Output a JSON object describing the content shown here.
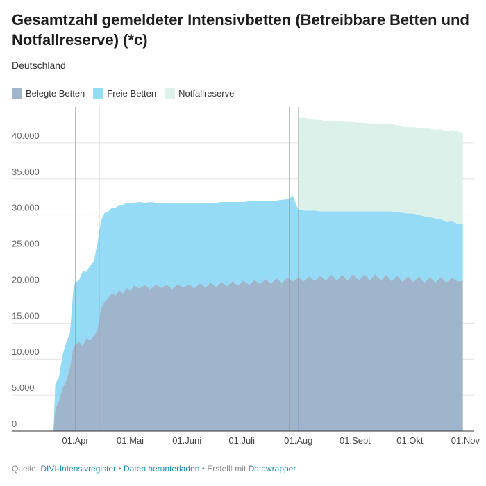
{
  "chart_data": {
    "type": "area",
    "title": "Gesamtzahl gemeldeter Intensivbetten (Betreibbare Betten und Notfallreserve) (*c)",
    "subtitle": "Deutschland",
    "xlabel": "",
    "ylabel": "",
    "x_range": [
      "2020-03-20",
      "2020-11-01"
    ],
    "ylim": [
      0,
      45000
    ],
    "y_ticks": [
      {
        "value": 0,
        "label": "0"
      },
      {
        "value": 5000,
        "label": "5.000"
      },
      {
        "value": 10000,
        "label": "10.000"
      },
      {
        "value": 15000,
        "label": "15.000"
      },
      {
        "value": 20000,
        "label": "20.000"
      },
      {
        "value": 25000,
        "label": "25.000"
      },
      {
        "value": 30000,
        "label": "30.000"
      },
      {
        "value": 35000,
        "label": "35.000"
      },
      {
        "value": 40000,
        "label": "40.000"
      }
    ],
    "x_ticks": [
      {
        "date": "2020-04-01",
        "label": "01.Apr"
      },
      {
        "date": "2020-05-01",
        "label": "01.Mai"
      },
      {
        "date": "2020-06-01",
        "label": "01.Juni"
      },
      {
        "date": "2020-07-01",
        "label": "01.Juli"
      },
      {
        "date": "2020-08-01",
        "label": "01.Aug"
      },
      {
        "date": "2020-09-01",
        "label": "01.Sept"
      },
      {
        "date": "2020-10-01",
        "label": "01.Okt"
      },
      {
        "date": "2020-11-01",
        "label": "01.Nov"
      }
    ],
    "reference_lines": [
      "2020-04-01",
      "2020-04-14",
      "2020-07-27",
      "2020-08-01"
    ],
    "grid": true,
    "legend_position": "top-left",
    "stacked": true,
    "series": [
      {
        "name": "Belegte Betten",
        "color": "#9fb5cc",
        "points": [
          [
            "2020-03-20",
            0
          ],
          [
            "2020-03-21",
            3000
          ],
          [
            "2020-03-23",
            4200
          ],
          [
            "2020-03-25",
            6000
          ],
          [
            "2020-03-27",
            7000
          ],
          [
            "2020-03-29",
            8800
          ],
          [
            "2020-03-31",
            11800
          ],
          [
            "2020-04-01",
            12000
          ],
          [
            "2020-04-03",
            12400
          ],
          [
            "2020-04-05",
            11800
          ],
          [
            "2020-04-07",
            12900
          ],
          [
            "2020-04-09",
            12600
          ],
          [
            "2020-04-11",
            13200
          ],
          [
            "2020-04-13",
            14000
          ],
          [
            "2020-04-15",
            17000
          ],
          [
            "2020-04-17",
            18000
          ],
          [
            "2020-04-19",
            18500
          ],
          [
            "2020-04-21",
            19200
          ],
          [
            "2020-04-23",
            18800
          ],
          [
            "2020-04-25",
            19600
          ],
          [
            "2020-04-27",
            19100
          ],
          [
            "2020-04-29",
            19900
          ],
          [
            "2020-05-01",
            19500
          ],
          [
            "2020-05-03",
            20200
          ],
          [
            "2020-05-06",
            19800
          ],
          [
            "2020-05-09",
            20300
          ],
          [
            "2020-05-12",
            19700
          ],
          [
            "2020-05-15",
            20300
          ],
          [
            "2020-05-18",
            19900
          ],
          [
            "2020-05-21",
            20300
          ],
          [
            "2020-05-24",
            19700
          ],
          [
            "2020-05-27",
            20400
          ],
          [
            "2020-05-30",
            19900
          ],
          [
            "2020-06-02",
            20400
          ],
          [
            "2020-06-05",
            19800
          ],
          [
            "2020-06-08",
            20500
          ],
          [
            "2020-06-11",
            19900
          ],
          [
            "2020-06-14",
            20600
          ],
          [
            "2020-06-17",
            20000
          ],
          [
            "2020-06-20",
            20700
          ],
          [
            "2020-06-23",
            20100
          ],
          [
            "2020-06-26",
            20800
          ],
          [
            "2020-06-29",
            20200
          ],
          [
            "2020-07-02",
            20900
          ],
          [
            "2020-07-05",
            20300
          ],
          [
            "2020-07-08",
            21000
          ],
          [
            "2020-07-11",
            20400
          ],
          [
            "2020-07-14",
            21100
          ],
          [
            "2020-07-17",
            20500
          ],
          [
            "2020-07-20",
            21200
          ],
          [
            "2020-07-23",
            20600
          ],
          [
            "2020-07-26",
            21300
          ],
          [
            "2020-07-29",
            20800
          ],
          [
            "2020-08-01",
            21300
          ],
          [
            "2020-08-04",
            20800
          ],
          [
            "2020-08-07",
            21500
          ],
          [
            "2020-08-10",
            20800
          ],
          [
            "2020-08-13",
            21600
          ],
          [
            "2020-08-16",
            20900
          ],
          [
            "2020-08-19",
            21700
          ],
          [
            "2020-08-22",
            20900
          ],
          [
            "2020-08-25",
            21700
          ],
          [
            "2020-08-28",
            20900
          ],
          [
            "2020-08-31",
            21800
          ],
          [
            "2020-09-03",
            20900
          ],
          [
            "2020-09-06",
            21800
          ],
          [
            "2020-09-09",
            20900
          ],
          [
            "2020-09-12",
            21800
          ],
          [
            "2020-09-15",
            20900
          ],
          [
            "2020-09-18",
            21700
          ],
          [
            "2020-09-21",
            20800
          ],
          [
            "2020-09-24",
            21600
          ],
          [
            "2020-09-27",
            20700
          ],
          [
            "2020-09-30",
            21500
          ],
          [
            "2020-10-03",
            20700
          ],
          [
            "2020-10-06",
            21500
          ],
          [
            "2020-10-09",
            20600
          ],
          [
            "2020-10-12",
            21400
          ],
          [
            "2020-10-15",
            20600
          ],
          [
            "2020-10-18",
            21400
          ],
          [
            "2020-10-21",
            20600
          ],
          [
            "2020-10-24",
            21300
          ],
          [
            "2020-10-27",
            20800
          ],
          [
            "2020-10-30",
            20800
          ]
        ]
      },
      {
        "name": "Freie Betten",
        "color": "#95dbf5",
        "points": [
          [
            "2020-03-20",
            0
          ],
          [
            "2020-03-21",
            3500
          ],
          [
            "2020-03-23",
            3300
          ],
          [
            "2020-03-25",
            4600
          ],
          [
            "2020-03-27",
            5300
          ],
          [
            "2020-03-29",
            4800
          ],
          [
            "2020-03-31",
            8300
          ],
          [
            "2020-04-01",
            8600
          ],
          [
            "2020-04-03",
            8600
          ],
          [
            "2020-04-05",
            10400
          ],
          [
            "2020-04-07",
            9200
          ],
          [
            "2020-04-09",
            10400
          ],
          [
            "2020-04-11",
            10300
          ],
          [
            "2020-04-13",
            12000
          ],
          [
            "2020-04-15",
            12200
          ],
          [
            "2020-04-17",
            12300
          ],
          [
            "2020-04-19",
            12000
          ],
          [
            "2020-04-21",
            11800
          ],
          [
            "2020-04-23",
            12200
          ],
          [
            "2020-04-25",
            11800
          ],
          [
            "2020-04-27",
            12300
          ],
          [
            "2020-04-29",
            11800
          ],
          [
            "2020-05-01",
            12200
          ],
          [
            "2020-05-03",
            11500
          ],
          [
            "2020-05-06",
            12000
          ],
          [
            "2020-05-09",
            11400
          ],
          [
            "2020-05-12",
            12100
          ],
          [
            "2020-05-15",
            11400
          ],
          [
            "2020-05-18",
            11800
          ],
          [
            "2020-05-21",
            11300
          ],
          [
            "2020-05-24",
            11900
          ],
          [
            "2020-05-27",
            11200
          ],
          [
            "2020-05-30",
            11700
          ],
          [
            "2020-06-02",
            11200
          ],
          [
            "2020-06-05",
            11800
          ],
          [
            "2020-06-08",
            11100
          ],
          [
            "2020-06-11",
            11700
          ],
          [
            "2020-06-14",
            11100
          ],
          [
            "2020-06-17",
            11700
          ],
          [
            "2020-06-20",
            11100
          ],
          [
            "2020-06-23",
            11700
          ],
          [
            "2020-06-26",
            11000
          ],
          [
            "2020-06-29",
            11600
          ],
          [
            "2020-07-02",
            10900
          ],
          [
            "2020-07-05",
            11600
          ],
          [
            "2020-07-08",
            10900
          ],
          [
            "2020-07-11",
            11500
          ],
          [
            "2020-07-14",
            10800
          ],
          [
            "2020-07-17",
            11400
          ],
          [
            "2020-07-20",
            10800
          ],
          [
            "2020-07-23",
            11500
          ],
          [
            "2020-07-26",
            10900
          ],
          [
            "2020-07-29",
            11800
          ],
          [
            "2020-08-01",
            9400
          ],
          [
            "2020-08-04",
            9800
          ],
          [
            "2020-08-07",
            9100
          ],
          [
            "2020-08-10",
            9800
          ],
          [
            "2020-08-13",
            8900
          ],
          [
            "2020-08-16",
            9600
          ],
          [
            "2020-08-19",
            8800
          ],
          [
            "2020-08-22",
            9600
          ],
          [
            "2020-08-25",
            8800
          ],
          [
            "2020-08-28",
            9600
          ],
          [
            "2020-08-31",
            8700
          ],
          [
            "2020-09-03",
            9600
          ],
          [
            "2020-09-06",
            8700
          ],
          [
            "2020-09-09",
            9600
          ],
          [
            "2020-09-12",
            8700
          ],
          [
            "2020-09-15",
            9600
          ],
          [
            "2020-09-18",
            8800
          ],
          [
            "2020-09-21",
            9700
          ],
          [
            "2020-09-24",
            8800
          ],
          [
            "2020-09-27",
            9600
          ],
          [
            "2020-09-30",
            8700
          ],
          [
            "2020-10-03",
            9500
          ],
          [
            "2020-10-06",
            8500
          ],
          [
            "2020-10-09",
            9200
          ],
          [
            "2020-10-12",
            8300
          ],
          [
            "2020-10-15",
            8900
          ],
          [
            "2020-10-18",
            8000
          ],
          [
            "2020-10-21",
            8400
          ],
          [
            "2020-10-24",
            7800
          ],
          [
            "2020-10-27",
            8000
          ],
          [
            "2020-10-30",
            8000
          ]
        ]
      },
      {
        "name": "Notfallreserve",
        "color": "#dcf1ea",
        "points": [
          [
            "2020-08-01",
            12800
          ],
          [
            "2020-08-04",
            12900
          ],
          [
            "2020-08-07",
            12800
          ],
          [
            "2020-08-10",
            12600
          ],
          [
            "2020-08-13",
            12700
          ],
          [
            "2020-08-16",
            12500
          ],
          [
            "2020-08-19",
            12600
          ],
          [
            "2020-08-22",
            12500
          ],
          [
            "2020-08-25",
            12500
          ],
          [
            "2020-08-28",
            12400
          ],
          [
            "2020-08-31",
            12400
          ],
          [
            "2020-09-03",
            12300
          ],
          [
            "2020-09-06",
            12300
          ],
          [
            "2020-09-09",
            12200
          ],
          [
            "2020-09-12",
            12200
          ],
          [
            "2020-09-15",
            12200
          ],
          [
            "2020-09-18",
            12200
          ],
          [
            "2020-09-21",
            12100
          ],
          [
            "2020-09-24",
            12100
          ],
          [
            "2020-09-27",
            12000
          ],
          [
            "2020-09-30",
            12000
          ],
          [
            "2020-10-03",
            12000
          ],
          [
            "2020-10-06",
            12100
          ],
          [
            "2020-10-09",
            12200
          ],
          [
            "2020-10-12",
            12300
          ],
          [
            "2020-10-15",
            12300
          ],
          [
            "2020-10-18",
            12500
          ],
          [
            "2020-10-21",
            12600
          ],
          [
            "2020-10-24",
            12700
          ],
          [
            "2020-10-27",
            12800
          ],
          [
            "2020-10-30",
            12600
          ]
        ]
      }
    ]
  },
  "footer": {
    "source_prefix": "Quelle:",
    "source_link": "DIVI-Intensivregister",
    "sep1": "•",
    "download_link": "Daten herunterladen",
    "sep2": "•",
    "made_with": "Erstellt mit",
    "datawrapper_link": "Datawrapper"
  }
}
